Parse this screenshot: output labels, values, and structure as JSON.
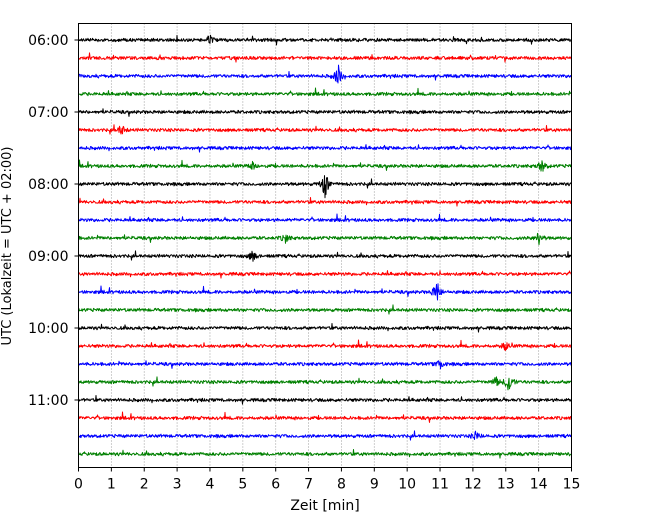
{
  "chart_data": {
    "type": "line",
    "title": "",
    "xlabel": "Zeit  [min]",
    "ylabel": "UTC (Lokalzeit = UTC + 02:00)",
    "xlim": [
      0,
      15
    ],
    "x_ticks": [
      0,
      1,
      2,
      3,
      4,
      5,
      6,
      7,
      8,
      9,
      10,
      11,
      12,
      13,
      14,
      15
    ],
    "x_tick_labels": [
      "0",
      "1",
      "2",
      "3",
      "4",
      "5",
      "6",
      "7",
      "8",
      "9",
      "10",
      "11",
      "12",
      "13",
      "14",
      "15"
    ],
    "y_tick_labels": [
      {
        "label": "06:00",
        "trace": 0
      },
      {
        "label": "07:00",
        "trace": 4
      },
      {
        "label": "08:00",
        "trace": 8
      },
      {
        "label": "09:00",
        "trace": 12
      },
      {
        "label": "10:00",
        "trace": 16
      },
      {
        "label": "11:00",
        "trace": 20
      }
    ],
    "grid": {
      "vertical": true,
      "style": "dotted"
    },
    "trace_colors": [
      "#000000",
      "#ff0000",
      "#0000ff",
      "#008000"
    ],
    "traces": [
      {
        "start": "06:00",
        "color": "#000000",
        "events": [
          [
            4.0,
            6
          ]
        ]
      },
      {
        "start": "06:15",
        "color": "#ff0000",
        "events": []
      },
      {
        "start": "06:30",
        "color": "#0000ff",
        "events": [
          [
            7.9,
            12
          ]
        ]
      },
      {
        "start": "06:45",
        "color": "#008000",
        "events": []
      },
      {
        "start": "07:00",
        "color": "#000000",
        "events": []
      },
      {
        "start": "07:15",
        "color": "#ff0000",
        "events": [
          [
            1.3,
            6
          ]
        ]
      },
      {
        "start": "07:30",
        "color": "#0000ff",
        "events": []
      },
      {
        "start": "07:45",
        "color": "#008000",
        "events": [
          [
            5.3,
            4
          ],
          [
            14.1,
            7
          ]
        ]
      },
      {
        "start": "08:00",
        "color": "#000000",
        "events": [
          [
            7.5,
            15
          ]
        ]
      },
      {
        "start": "08:15",
        "color": "#ff0000",
        "events": []
      },
      {
        "start": "08:30",
        "color": "#0000ff",
        "events": []
      },
      {
        "start": "08:45",
        "color": "#008000",
        "events": [
          [
            6.3,
            5
          ],
          [
            14.0,
            7
          ]
        ]
      },
      {
        "start": "09:00",
        "color": "#000000",
        "events": [
          [
            5.3,
            6
          ]
        ]
      },
      {
        "start": "09:15",
        "color": "#ff0000",
        "events": []
      },
      {
        "start": "09:30",
        "color": "#0000ff",
        "events": [
          [
            10.9,
            13
          ]
        ]
      },
      {
        "start": "09:45",
        "color": "#008000",
        "events": []
      },
      {
        "start": "10:00",
        "color": "#000000",
        "events": []
      },
      {
        "start": "10:15",
        "color": "#ff0000",
        "events": [
          [
            13.0,
            5
          ]
        ]
      },
      {
        "start": "10:30",
        "color": "#0000ff",
        "events": [
          [
            11.0,
            5
          ]
        ]
      },
      {
        "start": "10:45",
        "color": "#008000",
        "events": [
          [
            13.1,
            13
          ],
          [
            12.7,
            5
          ]
        ]
      },
      {
        "start": "11:00",
        "color": "#000000",
        "events": []
      },
      {
        "start": "11:15",
        "color": "#ff0000",
        "events": []
      },
      {
        "start": "11:30",
        "color": "#0000ff",
        "events": [
          [
            12.1,
            5
          ]
        ]
      },
      {
        "start": "11:45",
        "color": "#008000",
        "events": []
      }
    ]
  }
}
